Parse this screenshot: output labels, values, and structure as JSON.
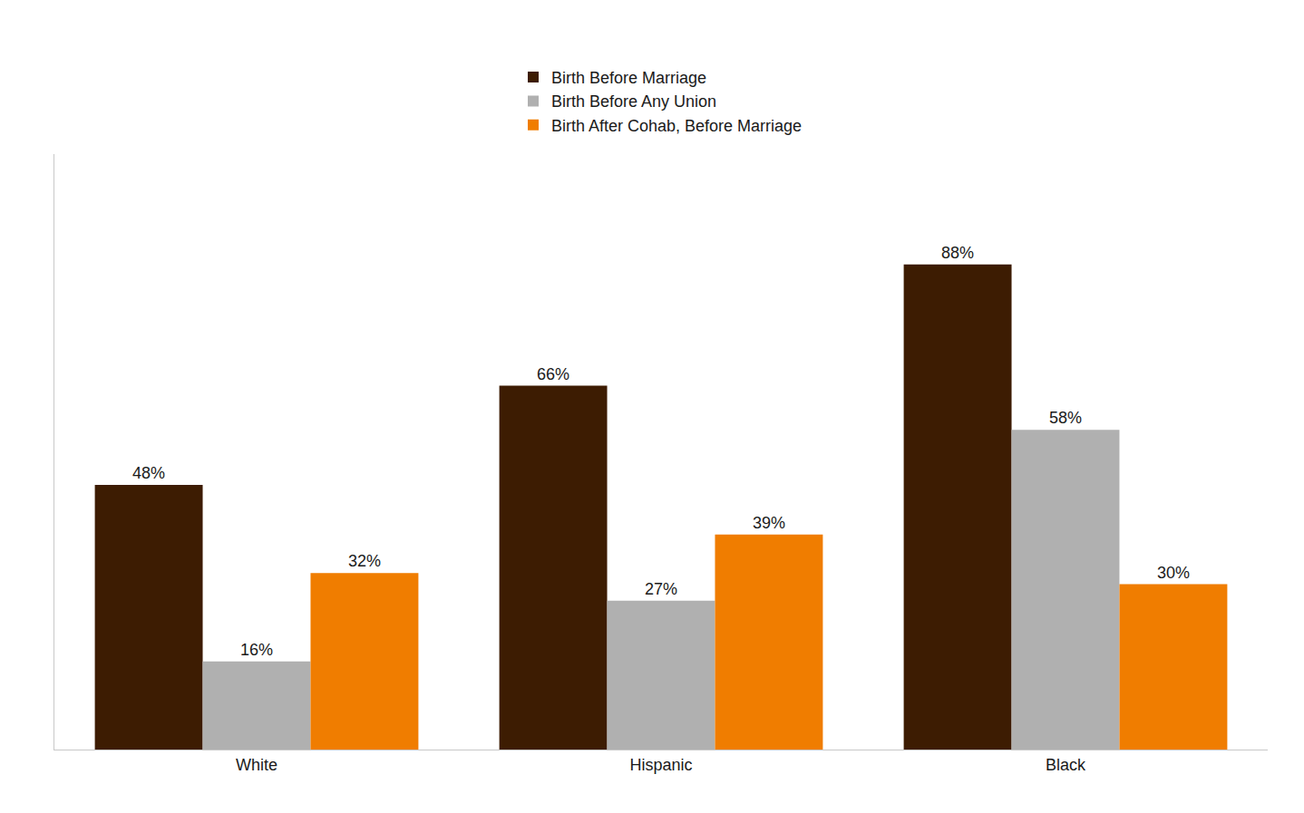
{
  "chart_data": {
    "type": "bar",
    "categories": [
      "White",
      "Hispanic",
      "Black"
    ],
    "series": [
      {
        "name": "Birth Before Marriage",
        "color": "#3d1c02",
        "values": [
          48,
          66,
          88
        ],
        "value_labels": [
          "48%",
          "66%",
          "88%"
        ]
      },
      {
        "name": "Birth Before Any Union",
        "color": "#b0b0b0",
        "values": [
          16,
          27,
          58
        ],
        "value_labels": [
          "16%",
          "27%",
          "58%"
        ]
      },
      {
        "name": "Birth After Cohab, Before Marriage",
        "color": "#f07d00",
        "values": [
          32,
          39,
          30
        ],
        "value_labels": [
          "32%",
          "39%",
          "30%"
        ]
      }
    ],
    "ylim": [
      0,
      108
    ],
    "data_labels": true,
    "tick_labels": "x",
    "grid": false,
    "legend": "top"
  }
}
